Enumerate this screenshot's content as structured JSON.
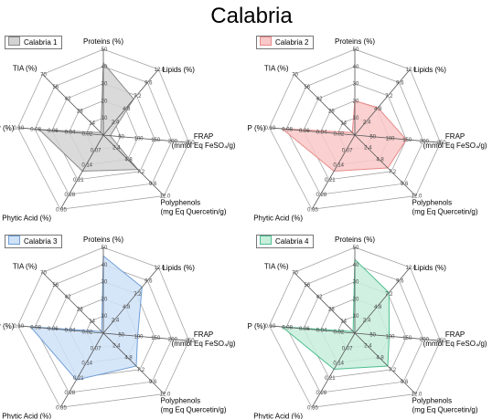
{
  "title": "Calabria",
  "colors": {
    "axis": "#555555",
    "grid": "#9a9a9a",
    "tick": "#444444"
  },
  "chart_data": [
    {
      "type": "radar",
      "legend": "Calabria 1",
      "fill": "#d3d3d3",
      "stroke": "#8c8c8c",
      "axes": [
        {
          "key": "proteins",
          "label": "Proteins (%)",
          "ticks": [
            "10",
            "20",
            "30",
            "40",
            "50"
          ],
          "max": 50
        },
        {
          "key": "lipids",
          "label": "Lipids (%)",
          "ticks": [
            "2.4",
            "4.8",
            "7.2",
            "9.6",
            "12.0"
          ],
          "max": 12.0
        },
        {
          "key": "frap",
          "label": "FRAP",
          "label2": "(mmol Eq FeSO₄/g)",
          "ticks": [
            "50",
            "100",
            "150",
            "200",
            "250"
          ],
          "max": 250
        },
        {
          "key": "polyphenols",
          "label": "Polyphenols",
          "label2": "(mg Eq Quercetin/g)",
          "ticks": [
            "2.4",
            "4.8",
            "7.2",
            "9.6",
            "12.0"
          ],
          "max": 12.0
        },
        {
          "key": "phytic_acid",
          "label": "Phytic Acid (%)",
          "ticks": [
            "0.07",
            "0.14",
            "0.21",
            "0.28",
            "0.35"
          ],
          "max": 0.35
        },
        {
          "key": "p",
          "label": "P (%)",
          "ticks": [
            "0.02",
            "0.04",
            "0.06",
            "0.08",
            "0.10"
          ],
          "max": 0.1
        },
        {
          "key": "tia",
          "label": "TIA (%)",
          "ticks": [
            "14",
            "28",
            "42",
            "56",
            "70"
          ],
          "max": 70
        }
      ],
      "values": [
        42,
        6.6,
        20,
        6.8,
        0.17,
        0.075,
        3
      ]
    },
    {
      "type": "radar",
      "legend": "Calabria 2",
      "fill": "#f9c8c8",
      "stroke": "#e88a8a",
      "axes": [
        {
          "key": "proteins",
          "label": "Proteins (%)",
          "ticks": [
            "10",
            "20",
            "30",
            "40",
            "50"
          ],
          "max": 50
        },
        {
          "key": "lipids",
          "label": "Lipids (%)",
          "ticks": [
            "2.4",
            "4.8",
            "7.2",
            "9.6",
            "12.0"
          ],
          "max": 12.0
        },
        {
          "key": "frap",
          "label": "FRAP",
          "label2": "(mmol Eq FeSO₄/g)",
          "ticks": [
            "50",
            "100",
            "150",
            "200",
            "250"
          ],
          "max": 250
        },
        {
          "key": "polyphenols",
          "label": "Polyphenols",
          "label2": "(mg Eq Quercetin/g)",
          "ticks": [
            "2.4",
            "4.8",
            "7.2",
            "9.6",
            "12.0"
          ],
          "max": 12.0
        },
        {
          "key": "phytic_acid",
          "label": "Phytic Acid (%)",
          "ticks": [
            "0.07",
            "0.14",
            "0.21",
            "0.28",
            "0.35"
          ],
          "max": 0.35
        },
        {
          "key": "p",
          "label": "P (%)",
          "ticks": [
            "0.02",
            "0.04",
            "0.06",
            "0.08",
            "0.10"
          ],
          "max": 0.1
        },
        {
          "key": "tia",
          "label": "TIA (%)",
          "ticks": [
            "14",
            "28",
            "42",
            "56",
            "70"
          ],
          "max": 70
        }
      ],
      "values": [
        20,
        5.0,
        150,
        6.5,
        0.17,
        0.085,
        3
      ]
    },
    {
      "type": "radar",
      "legend": "Calabria 3",
      "fill": "#cfe2f8",
      "stroke": "#6f9fd8",
      "axes": [
        {
          "key": "proteins",
          "label": "Proteins (%)",
          "ticks": [
            "10",
            "20",
            "30",
            "40",
            "50"
          ],
          "max": 50
        },
        {
          "key": "lipids",
          "label": "Lipids (%)",
          "ticks": [
            "2.4",
            "4.8",
            "7.2",
            "9.6",
            "12.0"
          ],
          "max": 12.0
        },
        {
          "key": "frap",
          "label": "FRAP",
          "label2": "(mmol Eq FeSO₄/g)",
          "ticks": [
            "50",
            "100",
            "150",
            "200",
            "250"
          ],
          "max": 250
        },
        {
          "key": "polyphenols",
          "label": "Polyphenols",
          "label2": "(mg Eq Quercetin/g)",
          "ticks": [
            "2.4",
            "4.8",
            "7.2",
            "9.6",
            "12.0"
          ],
          "max": 12.0
        },
        {
          "key": "phytic_acid",
          "label": "Phytic Acid (%)",
          "ticks": [
            "0.07",
            "0.14",
            "0.21",
            "0.28",
            "0.35"
          ],
          "max": 0.35
        },
        {
          "key": "p",
          "label": "P (%)",
          "ticks": [
            "0.02",
            "0.04",
            "0.06",
            "0.08",
            "0.10"
          ],
          "max": 0.1
        },
        {
          "key": "tia",
          "label": "TIA (%)",
          "ticks": [
            "14",
            "28",
            "42",
            "56",
            "70"
          ],
          "max": 70
        }
      ],
      "values": [
        45,
        8.4,
        100,
        6.5,
        0.22,
        0.085,
        2
      ]
    },
    {
      "type": "radar",
      "legend": "Calabria 4",
      "fill": "#c8eedc",
      "stroke": "#4cbf8f",
      "axes": [
        {
          "key": "proteins",
          "label": "Proteins (%)",
          "ticks": [
            "10",
            "20",
            "30",
            "40",
            "50"
          ],
          "max": 50
        },
        {
          "key": "lipids",
          "label": "Lipids (%)",
          "ticks": [
            "2.4",
            "4.8",
            "7.2",
            "9.6",
            "12.0"
          ],
          "max": 12.0
        },
        {
          "key": "frap",
          "label": "FRAP",
          "label2": "(mmol Eq FeSO₄/g)",
          "ticks": [
            "50",
            "100",
            "150",
            "200",
            "250"
          ],
          "max": 250
        },
        {
          "key": "polyphenols",
          "label": "Polyphenols",
          "label2": "(mg Eq Quercetin/g)",
          "ticks": [
            "2.4",
            "4.8",
            "7.2",
            "9.6",
            "12.0"
          ],
          "max": 12.0
        },
        {
          "key": "phytic_acid",
          "label": "Phytic Acid (%)",
          "ticks": [
            "0.07",
            "0.14",
            "0.21",
            "0.28",
            "0.35"
          ],
          "max": 0.35
        },
        {
          "key": "p",
          "label": "P (%)",
          "ticks": [
            "0.02",
            "0.04",
            "0.06",
            "0.08",
            "0.10"
          ],
          "max": 0.1
        },
        {
          "key": "tia",
          "label": "TIA (%)",
          "ticks": [
            "14",
            "28",
            "42",
            "56",
            "70"
          ],
          "max": 70
        }
      ],
      "values": [
        43,
        7.4,
        100,
        6.5,
        0.17,
        0.085,
        2
      ]
    }
  ]
}
